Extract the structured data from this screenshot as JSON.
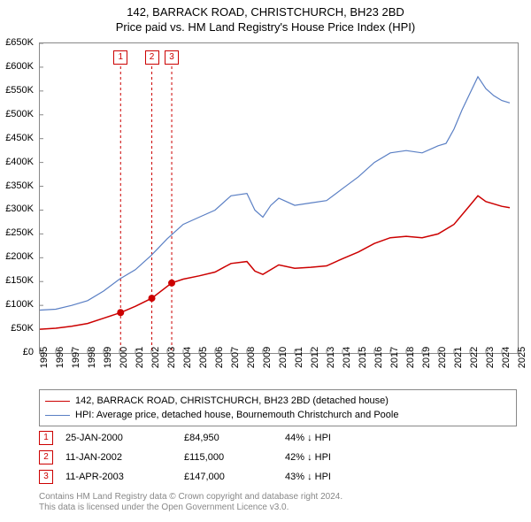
{
  "title_line1": "142, BARRACK ROAD, CHRISTCHURCH, BH23 2BD",
  "title_line2": "Price paid vs. HM Land Registry's House Price Index (HPI)",
  "chart": {
    "type": "line",
    "x_range": [
      1995,
      2025
    ],
    "x_ticks": [
      1995,
      1996,
      1997,
      1998,
      1999,
      2000,
      2001,
      2002,
      2003,
      2004,
      2005,
      2006,
      2007,
      2008,
      2009,
      2010,
      2011,
      2012,
      2013,
      2014,
      2015,
      2016,
      2017,
      2018,
      2019,
      2020,
      2021,
      2022,
      2023,
      2024,
      2025
    ],
    "y_range": [
      0,
      650000
    ],
    "y_ticks": [
      0,
      50000,
      100000,
      150000,
      200000,
      250000,
      300000,
      350000,
      400000,
      450000,
      500000,
      550000,
      600000,
      650000
    ],
    "y_tick_labels": [
      "£0",
      "£50K",
      "£100K",
      "£150K",
      "£200K",
      "£250K",
      "£300K",
      "£350K",
      "£400K",
      "£450K",
      "£500K",
      "£550K",
      "£600K",
      "£650K"
    ],
    "background_color": "#ffffff",
    "border_color": "#888888",
    "series": [
      {
        "name": "hpi",
        "label": "HPI: Average price, detached house, Bournemouth Christchurch and Poole",
        "color": "#5a7fc4",
        "width": 1.2,
        "points": [
          [
            1995.0,
            90000
          ],
          [
            1996.0,
            92000
          ],
          [
            1997.0,
            100000
          ],
          [
            1998.0,
            110000
          ],
          [
            1999.0,
            130000
          ],
          [
            2000.0,
            155000
          ],
          [
            2001.0,
            175000
          ],
          [
            2002.0,
            205000
          ],
          [
            2003.0,
            240000
          ],
          [
            2004.0,
            270000
          ],
          [
            2005.0,
            285000
          ],
          [
            2006.0,
            300000
          ],
          [
            2007.0,
            330000
          ],
          [
            2008.0,
            335000
          ],
          [
            2008.5,
            300000
          ],
          [
            2009.0,
            285000
          ],
          [
            2009.5,
            310000
          ],
          [
            2010.0,
            325000
          ],
          [
            2011.0,
            310000
          ],
          [
            2012.0,
            315000
          ],
          [
            2013.0,
            320000
          ],
          [
            2014.0,
            345000
          ],
          [
            2015.0,
            370000
          ],
          [
            2016.0,
            400000
          ],
          [
            2017.0,
            420000
          ],
          [
            2018.0,
            425000
          ],
          [
            2019.0,
            420000
          ],
          [
            2020.0,
            435000
          ],
          [
            2020.5,
            440000
          ],
          [
            2021.0,
            470000
          ],
          [
            2021.5,
            510000
          ],
          [
            2022.0,
            545000
          ],
          [
            2022.5,
            580000
          ],
          [
            2023.0,
            555000
          ],
          [
            2023.5,
            540000
          ],
          [
            2024.0,
            530000
          ],
          [
            2024.5,
            525000
          ]
        ]
      },
      {
        "name": "property",
        "label": "142, BARRACK ROAD, CHRISTCHURCH, BH23 2BD (detached house)",
        "color": "#cc0000",
        "width": 1.5,
        "points": [
          [
            1995.0,
            50000
          ],
          [
            1996.0,
            52000
          ],
          [
            1997.0,
            56000
          ],
          [
            1998.0,
            62000
          ],
          [
            1999.0,
            73000
          ],
          [
            2000.07,
            84950
          ],
          [
            2001.0,
            98000
          ],
          [
            2002.03,
            115000
          ],
          [
            2003.28,
            147000
          ],
          [
            2004.0,
            155000
          ],
          [
            2005.0,
            162000
          ],
          [
            2006.0,
            170000
          ],
          [
            2007.0,
            188000
          ],
          [
            2008.0,
            192000
          ],
          [
            2008.5,
            172000
          ],
          [
            2009.0,
            165000
          ],
          [
            2010.0,
            185000
          ],
          [
            2011.0,
            178000
          ],
          [
            2012.0,
            180000
          ],
          [
            2013.0,
            183000
          ],
          [
            2014.0,
            198000
          ],
          [
            2015.0,
            212000
          ],
          [
            2016.0,
            230000
          ],
          [
            2017.0,
            242000
          ],
          [
            2018.0,
            245000
          ],
          [
            2019.0,
            242000
          ],
          [
            2020.0,
            250000
          ],
          [
            2021.0,
            270000
          ],
          [
            2022.0,
            310000
          ],
          [
            2022.5,
            330000
          ],
          [
            2023.0,
            318000
          ],
          [
            2024.0,
            308000
          ],
          [
            2024.5,
            305000
          ]
        ]
      }
    ],
    "markers": [
      {
        "n": "1",
        "x": 2000.07,
        "y": 84950
      },
      {
        "n": "2",
        "x": 2002.03,
        "y": 115000
      },
      {
        "n": "3",
        "x": 2003.28,
        "y": 147000
      }
    ],
    "marker_dot_color": "#cc0000",
    "marker_box_top_y": 58,
    "vline_color": "#cc0000"
  },
  "legend": [
    {
      "color": "#cc0000",
      "label": "142, BARRACK ROAD, CHRISTCHURCH, BH23 2BD (detached house)"
    },
    {
      "color": "#5a7fc4",
      "label": "HPI: Average price, detached house, Bournemouth Christchurch and Poole"
    }
  ],
  "sales": [
    {
      "n": "1",
      "date": "25-JAN-2000",
      "price": "£84,950",
      "pct": "44% ↓ HPI"
    },
    {
      "n": "2",
      "date": "11-JAN-2002",
      "price": "£115,000",
      "pct": "42% ↓ HPI"
    },
    {
      "n": "3",
      "date": "11-APR-2003",
      "price": "£147,000",
      "pct": "43% ↓ HPI"
    }
  ],
  "footer_line1": "Contains HM Land Registry data © Crown copyright and database right 2024.",
  "footer_line2": "This data is licensed under the Open Government Licence v3.0."
}
